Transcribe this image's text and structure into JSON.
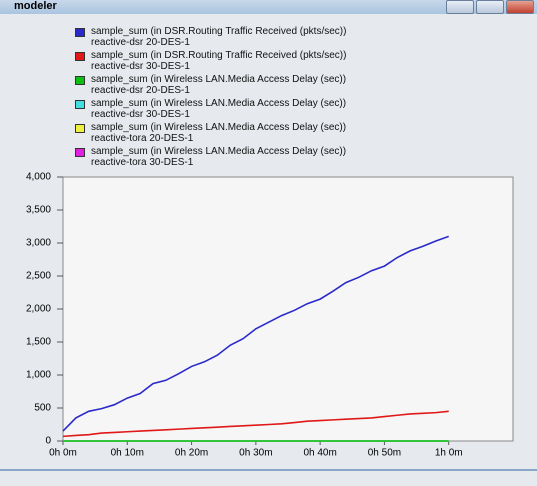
{
  "window": {
    "title": "modeler"
  },
  "chart_data": {
    "type": "line",
    "x": [
      0,
      2,
      4,
      6,
      8,
      10,
      12,
      14,
      16,
      18,
      20,
      22,
      24,
      26,
      28,
      30,
      32,
      34,
      36,
      38,
      40,
      42,
      44,
      46,
      48,
      50,
      52,
      54,
      56,
      58,
      60
    ],
    "series": [
      {
        "name": "sample_sum (in DSR.Routing Traffic Received (pkts/sec))\nreactive-dsr 20-DES-1",
        "color": "#2a2acc",
        "values": [
          150,
          350,
          450,
          490,
          550,
          650,
          720,
          870,
          920,
          1020,
          1130,
          1200,
          1300,
          1450,
          1550,
          1700,
          1800,
          1900,
          1980,
          2080,
          2150,
          2270,
          2400,
          2480,
          2580,
          2650,
          2780,
          2880,
          2950,
          3030,
          3100
        ]
      },
      {
        "name": "sample_sum (in DSR.Routing Traffic Received (pkts/sec))\nreactive-dsr 30-DES-1",
        "color": "#e01818",
        "values": [
          70,
          85,
          95,
          120,
          130,
          140,
          150,
          160,
          170,
          180,
          190,
          200,
          210,
          220,
          230,
          240,
          250,
          260,
          280,
          300,
          310,
          320,
          330,
          340,
          350,
          370,
          390,
          410,
          420,
          430,
          450
        ]
      },
      {
        "name": "sample_sum (in Wireless LAN.Media Access Delay (sec))\nreactive-dsr 20-DES-1",
        "color": "#10c010",
        "values": [
          0,
          0,
          0,
          0,
          0,
          0,
          0,
          0,
          0,
          0,
          0,
          0,
          0,
          0,
          0,
          0,
          0,
          0,
          0,
          0,
          0,
          0,
          0,
          0,
          0,
          0,
          0,
          0,
          0,
          0,
          0
        ]
      },
      {
        "name": "sample_sum (in Wireless LAN.Media Access Delay (sec))\nreactive-dsr 30-DES-1",
        "color": "#40e0e0",
        "values": [
          0,
          0,
          0,
          0,
          0,
          0,
          0,
          0,
          0,
          0,
          0,
          0,
          0,
          0,
          0,
          0,
          0,
          0,
          0,
          0,
          0,
          0,
          0,
          0,
          0,
          0,
          0,
          0,
          0,
          0,
          0
        ]
      },
      {
        "name": "sample_sum (in Wireless LAN.Media Access Delay (sec))\nreactive-tora 20-DES-1",
        "color": "#f0f040",
        "values": [
          0,
          0,
          0,
          0,
          0,
          0,
          0,
          0,
          0,
          0,
          0,
          0,
          0,
          0,
          0,
          0,
          0,
          0,
          0,
          0,
          0,
          0,
          0,
          0,
          0,
          0,
          0,
          0,
          0,
          0,
          0
        ]
      },
      {
        "name": "sample_sum (in Wireless LAN.Media Access Delay (sec))\nreactive-tora 30-DES-1",
        "color": "#e020e0",
        "values": [
          0,
          0,
          0,
          0,
          0,
          0,
          0,
          0,
          0,
          0,
          0,
          0,
          0,
          0,
          0,
          0,
          0,
          0,
          0,
          0,
          0,
          0,
          0,
          0,
          0,
          0,
          0,
          0,
          0,
          0,
          0
        ]
      }
    ],
    "xlim": [
      0,
      70
    ],
    "xticks": [
      {
        "value": 0,
        "label": "0h 0m"
      },
      {
        "value": 10,
        "label": "0h 10m"
      },
      {
        "value": 20,
        "label": "0h 20m"
      },
      {
        "value": 30,
        "label": "0h 30m"
      },
      {
        "value": 40,
        "label": "0h 40m"
      },
      {
        "value": 50,
        "label": "0h 50m"
      },
      {
        "value": 60,
        "label": "1h 0m"
      }
    ],
    "ylim": [
      0,
      4000
    ],
    "yticks": [
      0,
      500,
      {
        "value": 1000,
        "label": "1,000"
      },
      {
        "value": 1500,
        "label": "1,500"
      },
      {
        "value": 2000,
        "label": "2,000"
      },
      {
        "value": 2500,
        "label": "2,500"
      },
      {
        "value": 3000,
        "label": "3,000"
      },
      {
        "value": 3500,
        "label": "3,500"
      },
      {
        "value": 4000,
        "label": "4,000"
      }
    ],
    "grid": false
  }
}
